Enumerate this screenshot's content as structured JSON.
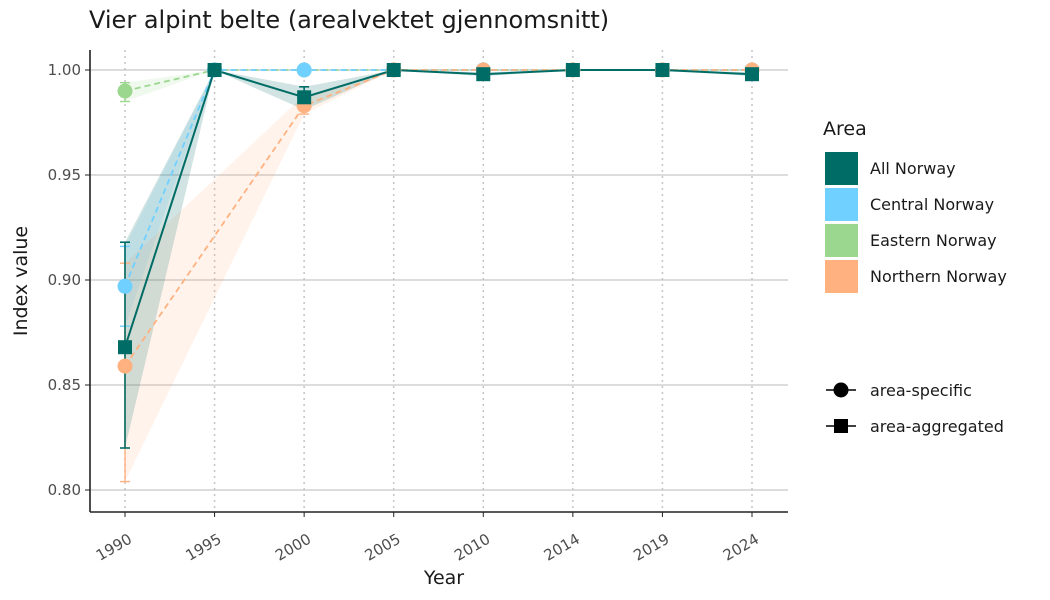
{
  "chart_data": {
    "type": "line",
    "title": "Vier alpint belte (arealvektet gjennomsnitt)",
    "xlabel": "Year",
    "ylabel": "Index value",
    "x": [
      1990,
      1995,
      2000,
      2005,
      2010,
      2014,
      2019,
      2024
    ],
    "ylim": [
      0.797,
      1.009
    ],
    "yticks": [
      "0.80",
      "0.85",
      "0.90",
      "0.95",
      "1.00"
    ],
    "grid": "horizontal major lines, vertical dotted lines at each year",
    "legend_title": "Area",
    "legend_placement": "right",
    "series": [
      {
        "name": "Eastern Norway",
        "color": "#9cd78f",
        "linestyle": "dashed",
        "marker": "circle",
        "values": [
          0.99,
          1.0,
          1.0,
          1.0,
          1.0,
          1.0,
          1.0,
          1.0
        ],
        "lower": [
          0.985,
          1.0,
          1.0,
          1.0,
          1.0,
          1.0,
          1.0,
          1.0
        ],
        "upper": [
          0.994,
          1.0,
          1.0,
          1.0,
          1.0,
          1.0,
          1.0,
          1.0
        ]
      },
      {
        "name": "Central Norway",
        "color": "#70d0ff",
        "linestyle": "dashed",
        "marker": "circle",
        "values": [
          0.897,
          1.0,
          1.0,
          1.0,
          1.0,
          1.0,
          1.0,
          1.0
        ],
        "lower": [
          0.878,
          1.0,
          1.0,
          1.0,
          1.0,
          1.0,
          1.0,
          1.0
        ],
        "upper": [
          0.916,
          1.0,
          1.0,
          1.0,
          1.0,
          1.0,
          1.0,
          1.0
        ]
      },
      {
        "name": "Northern Norway",
        "color": "#ffb180",
        "linestyle": "dashed",
        "marker": "circle",
        "values": [
          0.859,
          null,
          0.983,
          1.0,
          1.0,
          1.0,
          1.0,
          1.0
        ],
        "lower": [
          0.804,
          null,
          0.979,
          1.0,
          1.0,
          1.0,
          1.0,
          1.0
        ],
        "upper": [
          0.908,
          null,
          0.988,
          1.0,
          1.0,
          1.0,
          1.0,
          1.0
        ]
      },
      {
        "name": "All Norway",
        "color": "#006c66",
        "linestyle": "solid",
        "marker": "square",
        "values": [
          0.868,
          1.0,
          0.987,
          1.0,
          0.998,
          1.0,
          1.0,
          0.998
        ],
        "lower": [
          0.82,
          1.0,
          0.981,
          1.0,
          0.997,
          1.0,
          1.0,
          0.997
        ],
        "upper": [
          0.918,
          1.0,
          0.992,
          1.0,
          0.999,
          1.0,
          1.0,
          0.999
        ]
      }
    ],
    "shape_legend": [
      {
        "label": "area-specific",
        "marker": "circle"
      },
      {
        "label": "area-aggregated",
        "marker": "square"
      }
    ]
  }
}
